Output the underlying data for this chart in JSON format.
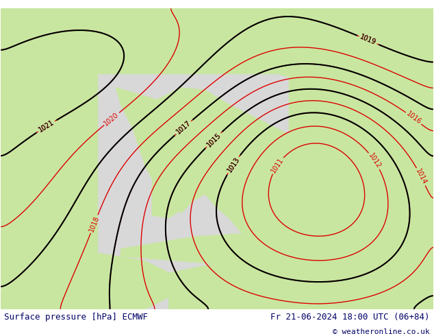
{
  "title_left": "Surface pressure [hPa] ECMWF",
  "title_right": "Fr 21-06-2024 18:00 UTC (06+84)",
  "copyright": "© weatheronline.co.uk",
  "bg_color_land": "#c8e6a0",
  "bg_color_sea": "#d8d8d8",
  "text_color_left": "#000066",
  "text_color_right": "#000066",
  "copyright_color": "#000066",
  "bottom_bar_color": "#e8e8e8",
  "figsize": [
    6.34,
    4.9
  ],
  "dpi": 100,
  "lon_min": 2.0,
  "lon_max": 20.0,
  "lat_min": 35.0,
  "lat_max": 47.5,
  "isobar_levels": [
    1011,
    1012,
    1013,
    1014,
    1015,
    1016,
    1017,
    1018,
    1019,
    1020
  ],
  "isobar_color_red": "#dd0000",
  "isobar_color_blue": "#0000cc",
  "isobar_color_black": "#000000",
  "label_fontsize": 7
}
